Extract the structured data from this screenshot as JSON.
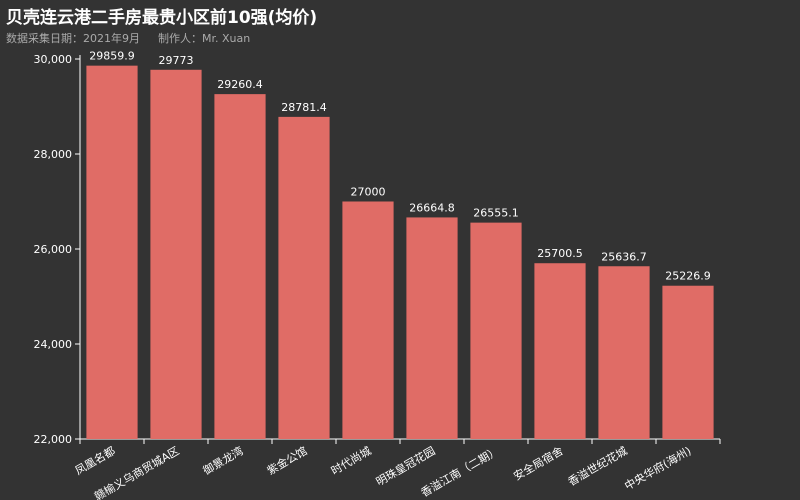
{
  "header": {
    "title": "贝壳连云港二手房最贵小区前10强(均价)",
    "date_label": "数据采集日期：2021年9月",
    "author_label": "制作人：Mr. Xuan"
  },
  "colors": {
    "background": "#333333",
    "bar": "#e06c66",
    "axis": "#ffffff"
  },
  "chart_data": {
    "type": "bar",
    "title": "贝壳连云港二手房最贵小区前10强(均价)",
    "xlabel": "",
    "ylabel": "",
    "ylim": [
      22000,
      30000
    ],
    "y_ticks": [
      22000,
      24000,
      26000,
      28000,
      30000
    ],
    "y_tick_labels": [
      "22,000",
      "24,000",
      "26,000",
      "28,000",
      "30,000"
    ],
    "grid": false,
    "categories": [
      "凤凰名都",
      "赣榆义乌商贸城A区",
      "御景龙湾",
      "紫金公馆",
      "时代尚城",
      "明珠皇冠花园",
      "香溢江南（二期）",
      "安全局宿舍",
      "香溢世纪花城",
      "中央华府(海州)"
    ],
    "values": [
      29859.9,
      29773,
      29260.4,
      28781.4,
      27000,
      26664.8,
      26555.1,
      25700.5,
      25636.7,
      25226.9
    ],
    "value_labels": [
      "29859.9",
      "29773",
      "29260.4",
      "28781.4",
      "27000",
      "26664.8",
      "26555.1",
      "25700.5",
      "25636.7",
      "25226.9"
    ]
  }
}
